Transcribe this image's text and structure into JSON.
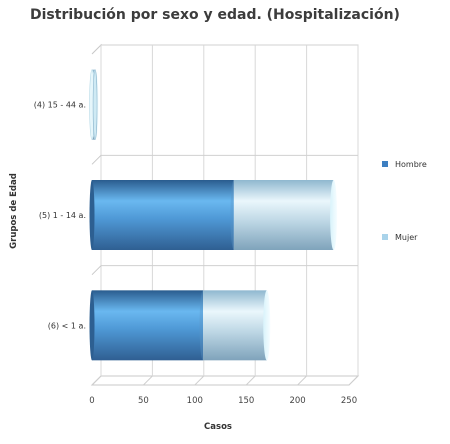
{
  "chart_data": {
    "type": "bar",
    "orientation": "horizontal",
    "stacked": true,
    "title": "Distribución por sexo y edad. (Hospitalización)",
    "xlabel": "Casos",
    "ylabel": "Grupos de Edad",
    "categories": [
      "(4) 15 - 44 a.",
      "(5) 1 - 14 a.",
      "(6) < 1 a."
    ],
    "series": [
      {
        "name": "Hombre",
        "values": [
          0,
          138,
          108
        ],
        "color": "#3d7fc1"
      },
      {
        "name": "Mujer",
        "values": [
          3,
          97,
          62
        ],
        "color": "#a9d3ea"
      }
    ],
    "xlim": [
      0,
      250
    ],
    "xticks": [
      0,
      50,
      100,
      150,
      200,
      250
    ],
    "grid": true,
    "legend": "right"
  }
}
